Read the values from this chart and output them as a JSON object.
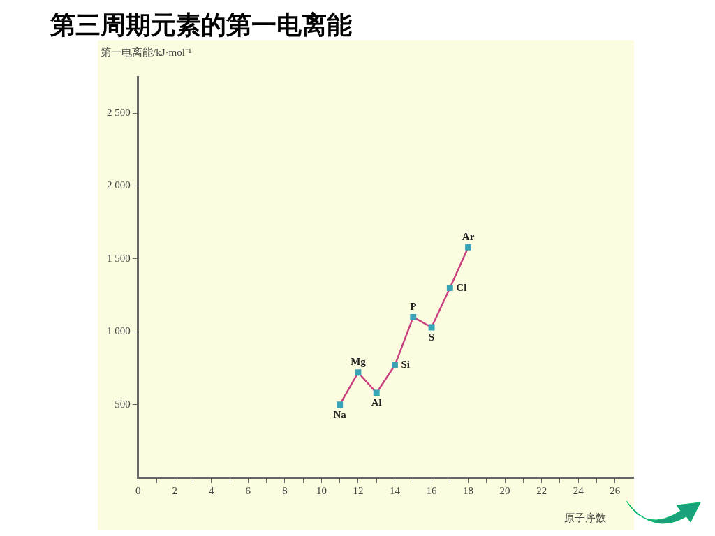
{
  "chart_data": {
    "type": "line",
    "title": "第三周期元素的第一电离能",
    "xlabel": "原子序数",
    "ylabel": "第一电离能/kJ·mol⁻¹",
    "x": [
      11,
      12,
      13,
      14,
      15,
      16,
      17,
      18
    ],
    "series": [
      {
        "color": "#c8407f",
        "values": [
          500,
          720,
          580,
          770,
          1100,
          1030,
          1300,
          1580
        ]
      }
    ],
    "marker": "square",
    "grid": false,
    "legend": false,
    "xlim": [
      0,
      27
    ],
    "xticks": [
      0,
      {
        "value": 1,
        "label": null
      },
      2,
      {
        "value": 3,
        "label": null
      },
      4,
      {
        "value": 5,
        "label": null
      },
      6,
      {
        "value": 7,
        "label": null
      },
      8,
      {
        "value": 9,
        "label": null
      },
      10,
      {
        "value": 11,
        "label": null
      },
      12,
      {
        "value": 13,
        "label": null
      },
      14,
      {
        "value": 15,
        "label": null
      },
      16,
      {
        "value": 17,
        "label": null
      },
      18,
      {
        "value": 19,
        "label": null
      },
      20,
      {
        "value": 21,
        "label": null
      },
      22,
      {
        "value": 23,
        "label": null
      },
      24,
      {
        "value": 25,
        "label": null
      },
      26
    ],
    "ylim": [
      0,
      2750
    ],
    "yticks": [
      {
        "value": 500,
        "label": "500"
      },
      {
        "value": 1000,
        "label": "1 000"
      },
      {
        "value": 1500,
        "label": "1 500"
      },
      {
        "value": 2000,
        "label": "2 000"
      },
      {
        "value": 2500,
        "label": "2 500"
      }
    ],
    "annotations": [
      {
        "text": "Na",
        "x": 11,
        "y": 500
      },
      {
        "text": "Mg",
        "x": 12,
        "y": 720
      },
      {
        "text": "Al",
        "x": 13,
        "y": 580
      },
      {
        "text": "Si",
        "x": 14,
        "y": 770
      },
      {
        "text": "P",
        "x": 15,
        "y": 1100
      },
      {
        "text": "S",
        "x": 16,
        "y": 1030
      },
      {
        "text": "Cl",
        "x": 17,
        "y": 1300
      },
      {
        "text": "Ar",
        "x": 18,
        "y": 1580
      }
    ]
  }
}
